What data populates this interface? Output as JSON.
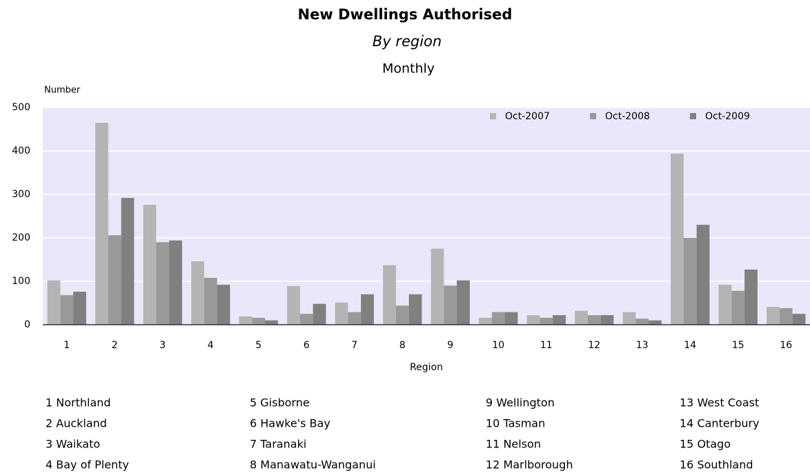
{
  "chart_data": {
    "type": "bar",
    "title": "New Dwellings Authorised",
    "subtitle": "By region",
    "frequency": "Monthly",
    "y_label": "Number",
    "x_label": "Region",
    "categories": [
      "1",
      "2",
      "3",
      "4",
      "5",
      "6",
      "7",
      "8",
      "9",
      "10",
      "11",
      "12",
      "13",
      "14",
      "15",
      "16"
    ],
    "series": [
      {
        "name": "Oct-2007",
        "color": "#b4b4b4",
        "values": [
          102,
          465,
          276,
          146,
          19,
          89,
          51,
          137,
          175,
          16,
          22,
          32,
          29,
          394,
          92,
          41
        ]
      },
      {
        "name": "Oct-2008",
        "color": "#999999",
        "values": [
          68,
          206,
          190,
          108,
          16,
          25,
          29,
          44,
          90,
          29,
          16,
          22,
          14,
          200,
          78,
          38
        ]
      },
      {
        "name": "Oct-2009",
        "color": "#808080",
        "values": [
          76,
          292,
          194,
          92,
          10,
          48,
          70,
          70,
          102,
          29,
          22,
          22,
          10,
          230,
          127,
          25
        ]
      }
    ],
    "ylim": [
      0,
      500
    ],
    "yticks": [
      0,
      100,
      200,
      300,
      400,
      500
    ],
    "grid": true,
    "legend": "top-right",
    "region_names": [
      "1 Northland",
      "2 Auckland",
      "3 Waikato",
      "4 Bay of Plenty",
      "5 Gisborne",
      "6 Hawke's Bay",
      "7 Taranaki",
      "8 Manawatu-Wanganui",
      "9 Wellington",
      "10 Tasman",
      "11 Nelson",
      "12 Marlborough",
      "13 West Coast",
      "14 Canterbury",
      "15 Otago",
      "16 Southland"
    ]
  }
}
